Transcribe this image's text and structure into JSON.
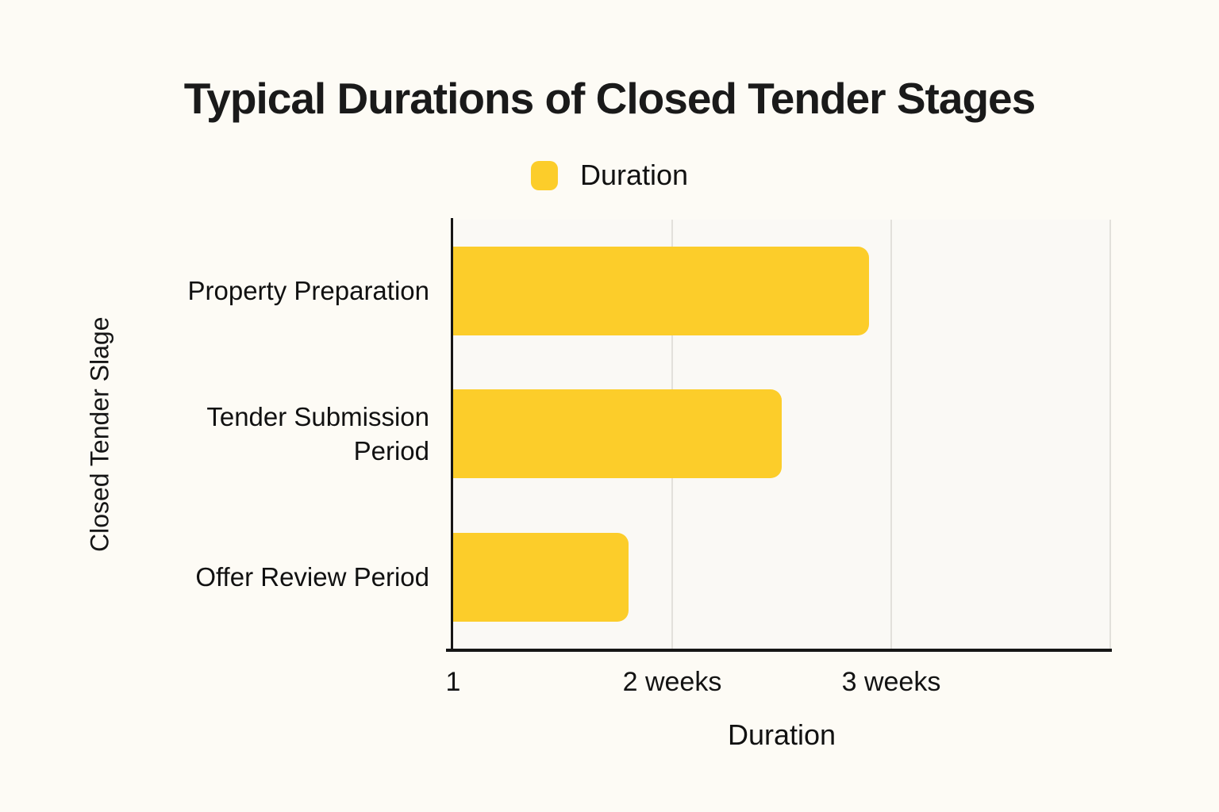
{
  "chart_data": {
    "type": "bar",
    "orientation": "horizontal",
    "title": "Typical Durations of Closed Tender Stages",
    "legend": {
      "label": "Duration",
      "color": "#FCCD2A",
      "position": "top-center"
    },
    "categories": [
      "Property Preparation",
      "Tender Submission Period",
      "Offer Review Period"
    ],
    "series": [
      {
        "name": "Duration",
        "unit": "weeks",
        "values": [
          2.9,
          2.5,
          1.8
        ],
        "color": "#FCCD2A"
      }
    ],
    "xlabel": "Duration",
    "ylabel": "Closed Tender Slage",
    "xlim": [
      1,
      4
    ],
    "xticks": [
      {
        "value": 1,
        "label": "1"
      },
      {
        "value": 2,
        "label": "2 weeks"
      },
      {
        "value": 3,
        "label": "3 weeks"
      }
    ],
    "gridline_values": [
      2,
      3,
      4
    ],
    "grid": "vertical",
    "colors": {
      "page_background": "#FDFBF5",
      "plot_background": "#FAF9F5",
      "bar": "#FCCD2A",
      "axis_line": "#161616",
      "gridline": "#E2E0DB",
      "text": "#111111"
    }
  }
}
